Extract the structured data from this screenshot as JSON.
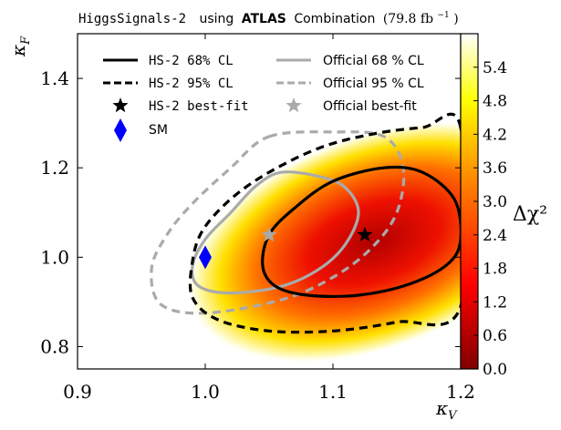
{
  "chart_data": {
    "type": "heatmap",
    "title": {
      "prefix": "HiggsSignals-2",
      "mid": "using",
      "bold": "ATLAS",
      "suffix": "Combination",
      "lumi": "(79.8 fb",
      "lumi_exp": "−1",
      "lumi_close": ")"
    },
    "xlabel": {
      "base": "κ",
      "sub": "V"
    },
    "ylabel": {
      "base": "κ",
      "sub": "F"
    },
    "xlim": [
      0.9,
      1.2
    ],
    "ylim": [
      0.75,
      1.5
    ],
    "xticks": [
      "0.9",
      "1.0",
      "1.1",
      "1.2"
    ],
    "xtick_values": [
      0.9,
      1.0,
      1.1,
      1.2
    ],
    "yticks": [
      "0.8",
      "1.0",
      "1.2",
      "1.4"
    ],
    "ytick_values": [
      0.8,
      1.0,
      1.2,
      1.4
    ],
    "colorbar": {
      "label": "Δχ²",
      "range": [
        0.0,
        6.0
      ],
      "ticks": [
        "0.0",
        "0.6",
        "1.2",
        "1.8",
        "2.4",
        "3.0",
        "3.6",
        "4.2",
        "4.8",
        "5.4"
      ],
      "tick_values": [
        0.0,
        0.6,
        1.2,
        1.8,
        2.4,
        3.0,
        3.6,
        4.2,
        4.8,
        5.4
      ],
      "colormap": [
        "#800000",
        "#ff0000",
        "#ff8000",
        "#ffff00",
        "#ffffff"
      ]
    },
    "hs2_bestfit": {
      "x": 1.125,
      "y": 1.05,
      "label": "HS-2 best-fit",
      "color": "#000000"
    },
    "official_bestfit": {
      "x": 1.05,
      "y": 1.05,
      "label": "Official best-fit",
      "color": "#aaaaaa"
    },
    "sm_point": {
      "x": 1.0,
      "y": 1.0,
      "label": "SM",
      "color": "#0000ff"
    },
    "hs2_contour_68": {
      "label": "HS-2 68% CL",
      "points": [
        [
          1.195,
          1.13
        ],
        [
          1.17,
          1.19
        ],
        [
          1.14,
          1.2
        ],
        [
          1.1,
          1.17
        ],
        [
          1.07,
          1.11
        ],
        [
          1.05,
          1.05
        ],
        [
          1.045,
          0.98
        ],
        [
          1.055,
          0.935
        ],
        [
          1.08,
          0.915
        ],
        [
          1.12,
          0.915
        ],
        [
          1.16,
          0.94
        ],
        [
          1.19,
          0.985
        ],
        [
          1.2,
          1.04
        ]
      ]
    },
    "hs2_contour_95": {
      "label": "HS-2 95% CL",
      "points": [
        [
          1.2,
          1.29
        ],
        [
          1.17,
          1.29
        ],
        [
          1.13,
          1.275
        ],
        [
          1.09,
          1.245
        ],
        [
          1.05,
          1.19
        ],
        [
          1.02,
          1.13
        ],
        [
          0.998,
          1.06
        ],
        [
          0.99,
          0.99
        ],
        [
          0.99,
          0.91
        ],
        [
          1.01,
          0.86
        ],
        [
          1.05,
          0.835
        ],
        [
          1.1,
          0.835
        ],
        [
          1.15,
          0.855
        ],
        [
          1.2,
          0.89
        ]
      ]
    },
    "official_contour_68": {
      "label": "Official 68 % CL",
      "points": [
        [
          1.06,
          1.19
        ],
        [
          1.09,
          1.18
        ],
        [
          1.11,
          1.155
        ],
        [
          1.12,
          1.1
        ],
        [
          1.11,
          1.03
        ],
        [
          1.09,
          0.975
        ],
        [
          1.06,
          0.935
        ],
        [
          1.02,
          0.92
        ],
        [
          0.995,
          0.935
        ],
        [
          0.99,
          0.98
        ],
        [
          1.0,
          1.04
        ],
        [
          1.02,
          1.1
        ],
        [
          1.04,
          1.16
        ]
      ]
    },
    "official_contour_95": {
      "label": "Official 95 % CL",
      "points": [
        [
          1.05,
          1.27
        ],
        [
          1.1,
          1.28
        ],
        [
          1.14,
          1.27
        ],
        [
          1.155,
          1.2
        ],
        [
          1.15,
          1.1
        ],
        [
          1.13,
          1.02
        ],
        [
          1.1,
          0.955
        ],
        [
          1.06,
          0.905
        ],
        [
          1.0,
          0.875
        ],
        [
          0.965,
          0.895
        ],
        [
          0.958,
          0.975
        ],
        [
          0.97,
          1.05
        ],
        [
          0.99,
          1.12
        ],
        [
          1.02,
          1.2
        ]
      ]
    },
    "legend": [
      {
        "label": "HS-2 68% CL",
        "style": "solid-black"
      },
      {
        "label": "HS-2 95% CL",
        "style": "dashed-black"
      },
      {
        "label": "HS-2 best-fit",
        "style": "star-black"
      },
      {
        "label": "SM",
        "style": "diamond-blue"
      },
      {
        "label": "Official 68 % CL",
        "style": "solid-gray"
      },
      {
        "label": "Official 95 % CL",
        "style": "dashed-gray"
      },
      {
        "label": "Official best-fit",
        "style": "star-gray"
      }
    ]
  }
}
